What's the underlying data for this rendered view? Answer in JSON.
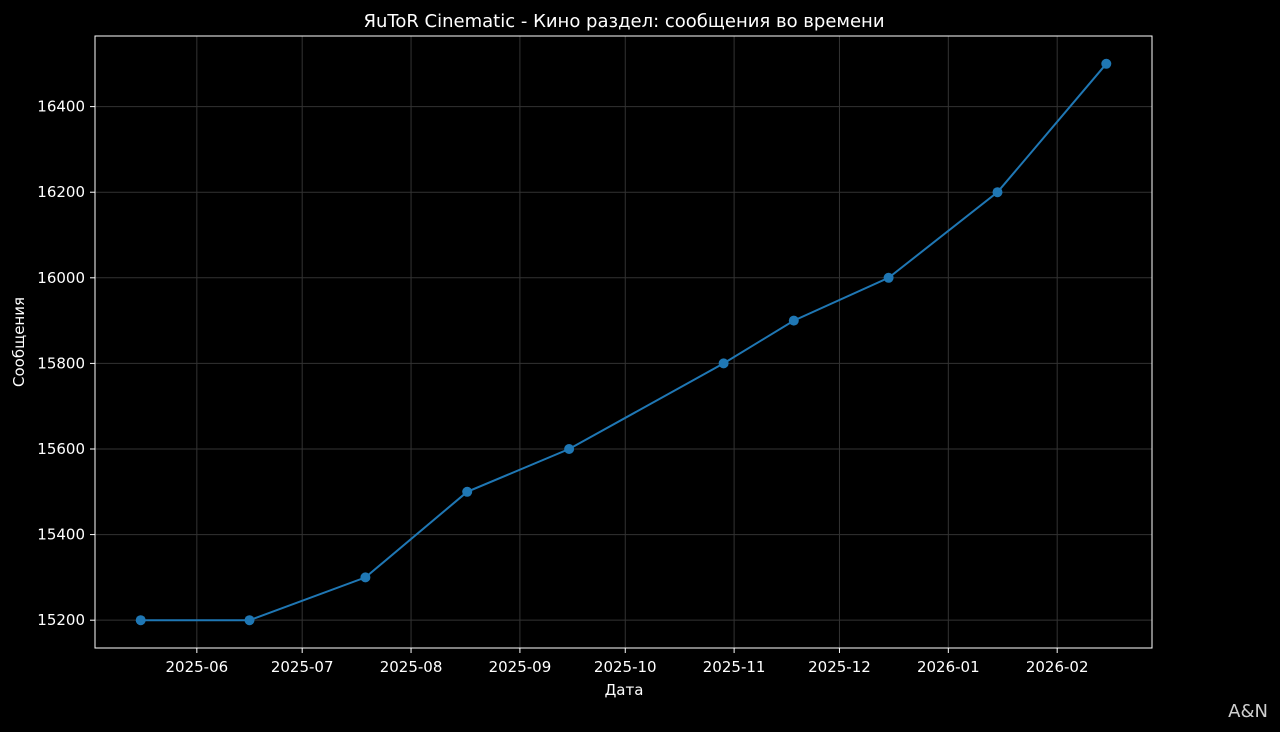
{
  "chart_data": {
    "type": "line",
    "title": "ЯuToR Cinematic - Кино раздел: сообщения во времени",
    "xlabel": "Дата",
    "ylabel": "Сообщения",
    "x": [
      "2025-05-16",
      "2025-06-16",
      "2025-07-19",
      "2025-08-17",
      "2025-09-15",
      "2025-10-29",
      "2025-11-18",
      "2025-12-15",
      "2026-01-15",
      "2026-02-15"
    ],
    "values": [
      15200,
      15200,
      15300,
      15500,
      15600,
      15800,
      15900,
      16000,
      16200,
      16500
    ],
    "x_ticks": [
      "2025-06",
      "2025-07",
      "2025-08",
      "2025-09",
      "2025-10",
      "2025-11",
      "2025-12",
      "2026-01",
      "2026-02"
    ],
    "y_ticks": [
      15200,
      15400,
      15600,
      15800,
      16000,
      16200,
      16400
    ],
    "xlim": [
      "2025-05-03",
      "2026-02-28"
    ],
    "ylim": [
      15135,
      16565
    ],
    "grid": true,
    "legend": "none",
    "colors": {
      "line": "#1f77b4",
      "background": "#000000",
      "axes": "#ffffff",
      "grid": "#333333"
    }
  },
  "watermark": "A&N"
}
